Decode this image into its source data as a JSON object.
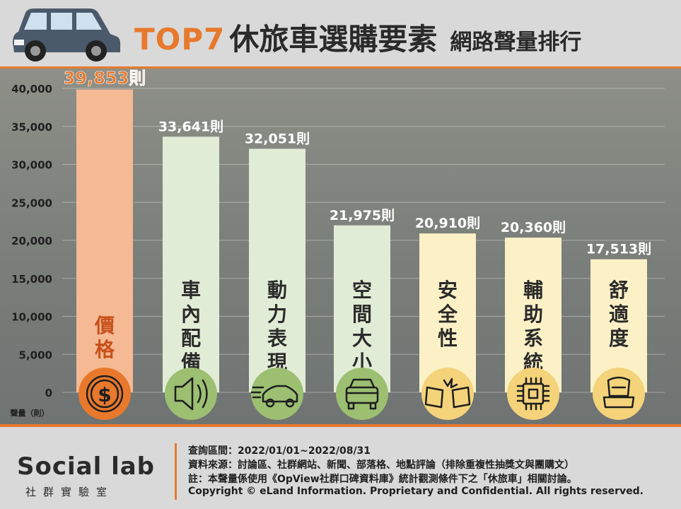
{
  "header": {
    "title_highlight": "TOP7",
    "title_main": "休旅車選購要素",
    "title_sub": "網路聲量排行"
  },
  "chart_data": {
    "type": "bar",
    "categories": [
      "價格",
      "車內配備",
      "動力表現",
      "空間大小",
      "安全性",
      "輔助系統",
      "舒適度"
    ],
    "values": [
      39853,
      33641,
      32051,
      21975,
      20910,
      20360,
      17513
    ],
    "value_labels": [
      "39,853則",
      "33,641則",
      "32,051則",
      "21,975則",
      "20,910則",
      "20,360則",
      "17,513則"
    ],
    "ylabel": "聲量（則）",
    "ylim": [
      0,
      40000
    ],
    "yticks": [
      0,
      5000,
      10000,
      15000,
      20000,
      25000,
      30000,
      35000,
      40000
    ],
    "ytick_labels": [
      "0",
      "5,000",
      "10,000",
      "15,000",
      "20,000",
      "25,000",
      "30,000",
      "35,000",
      "40,000"
    ],
    "grid": true,
    "icons": [
      "dollar-icon",
      "speaker-icon",
      "car-speed-icon",
      "suv-icon",
      "crash-icon",
      "chip-icon",
      "seat-icon"
    ],
    "bar_colors": [
      "#f5b994",
      "#e1ecd7",
      "#e1ecd7",
      "#e1ecd7",
      "#fcf1c6",
      "#fcf1c6",
      "#fcf1c6"
    ],
    "icon_colors": [
      "#e8792c",
      "#9cbf72",
      "#9cbf72",
      "#9cbf72",
      "#f4d37a",
      "#f4d37a",
      "#f4d37a"
    ],
    "highlight_color": "#e8792c"
  },
  "footer": {
    "logo": "Social lab",
    "logo_sub": "社群實驗室",
    "query_period": "查詢區間：2022/01/01~2022/08/31",
    "data_source": "資料來源：討論區、社群網站、新聞、部落格、地點評論（排除重複性抽獎文與團購文）",
    "note": "註：本聲量係使用《OpView社群口碑資料庫》統計觀測條件下之「休旅車」相關討論。",
    "copyright": "Copyright © eLand Information. Proprietary and Confidential. All rights reserved."
  }
}
